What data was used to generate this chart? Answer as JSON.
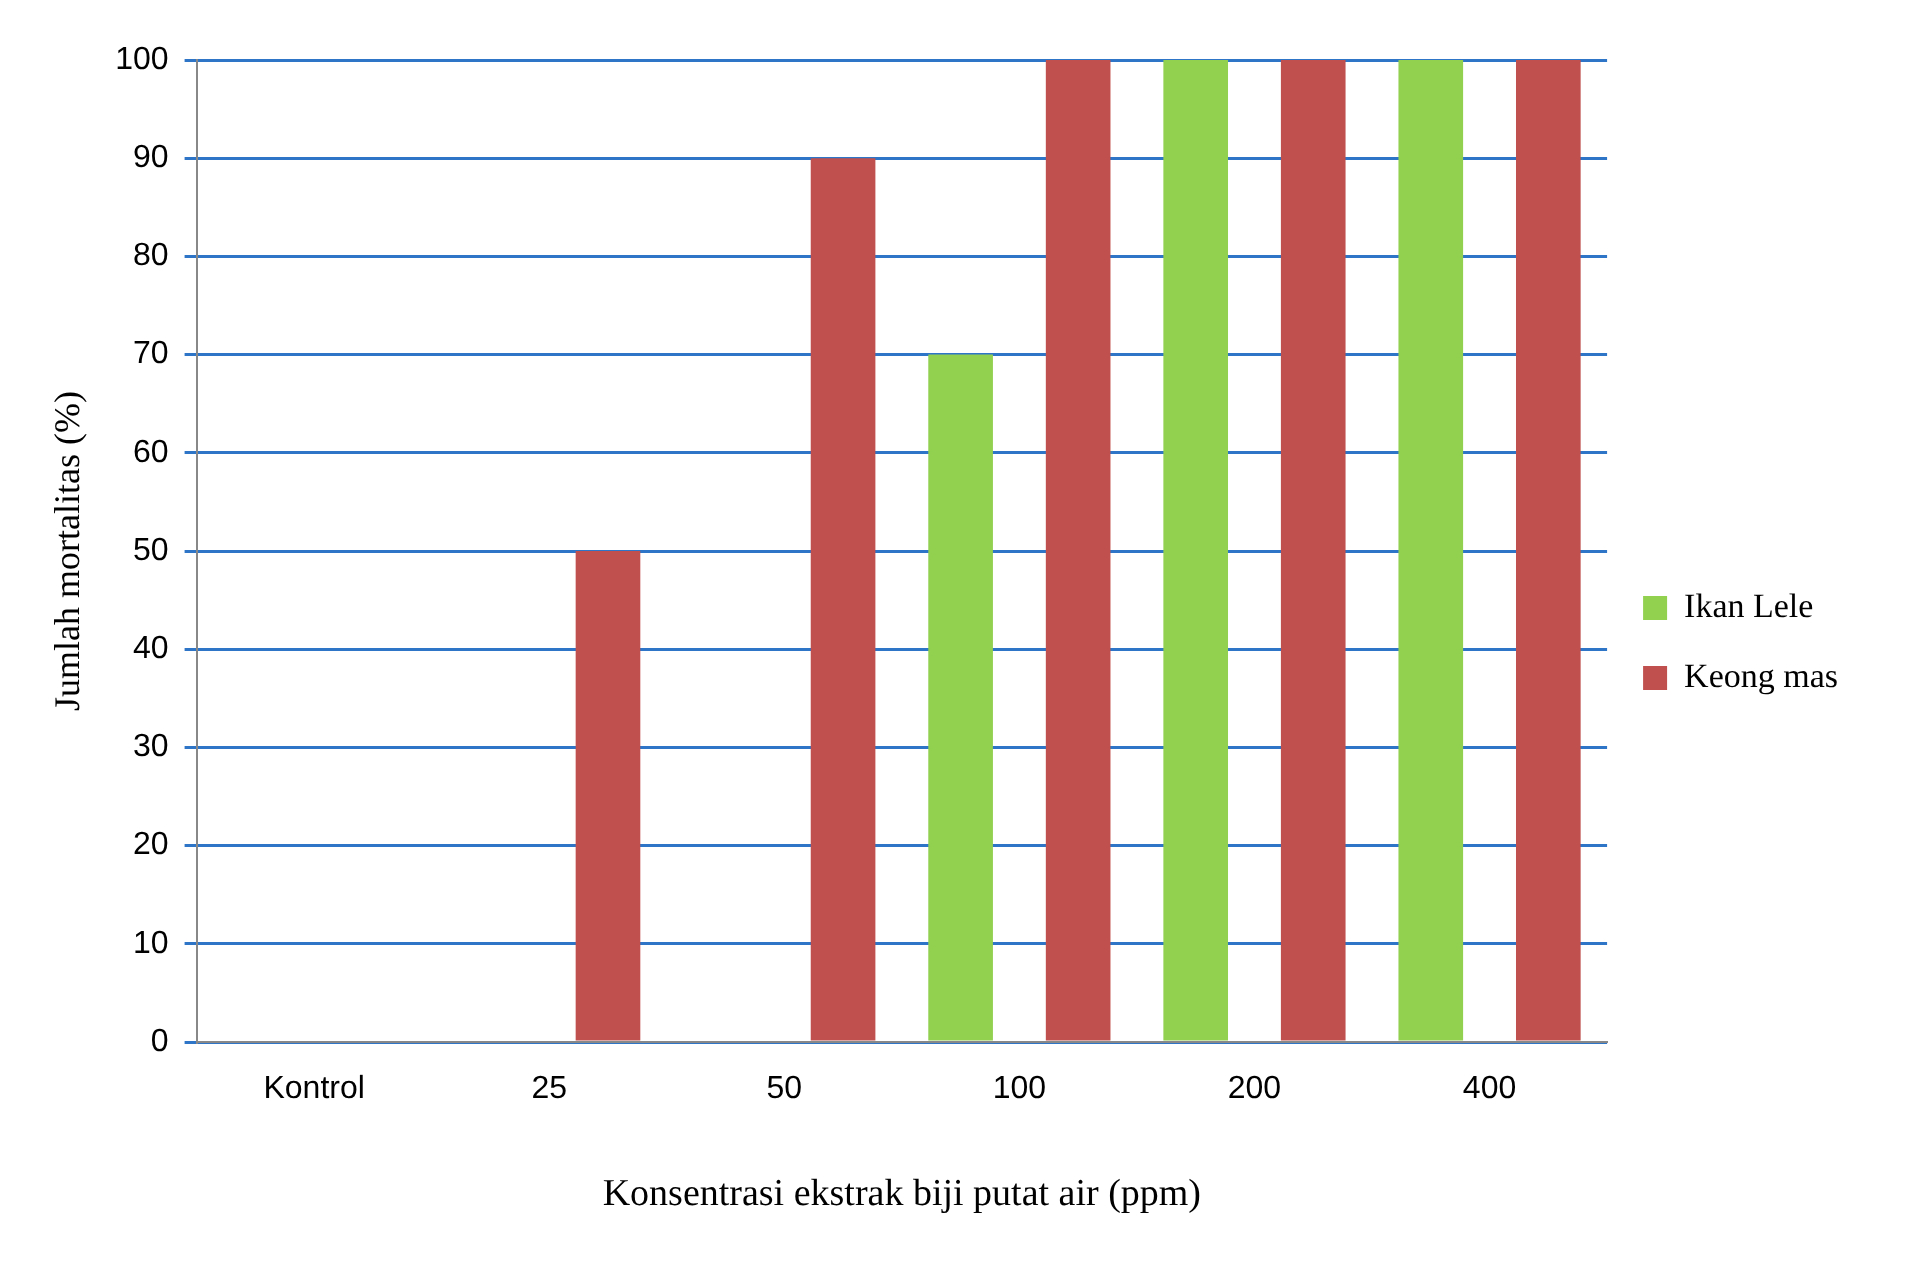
{
  "chart_data": {
    "type": "bar",
    "xlabel": "Konsentrasi ekstrak biji putat air (ppm)",
    "ylabel": "Jumlah mortalitas (%)",
    "categories": [
      "Kontrol",
      "25",
      "50",
      "100",
      "200",
      "400"
    ],
    "series": [
      {
        "name": "Ikan Lele",
        "color": "#92d050",
        "values": [
          0,
          0,
          0,
          70,
          100,
          100
        ]
      },
      {
        "name": "Keong mas",
        "color": "#c0504d",
        "values": [
          0,
          50,
          90,
          100,
          100,
          100
        ]
      }
    ],
    "ylim": [
      0,
      100
    ],
    "yticks": [
      0,
      10,
      20,
      30,
      40,
      50,
      60,
      70,
      80,
      90,
      100
    ],
    "grid": "y",
    "legend": "right"
  }
}
